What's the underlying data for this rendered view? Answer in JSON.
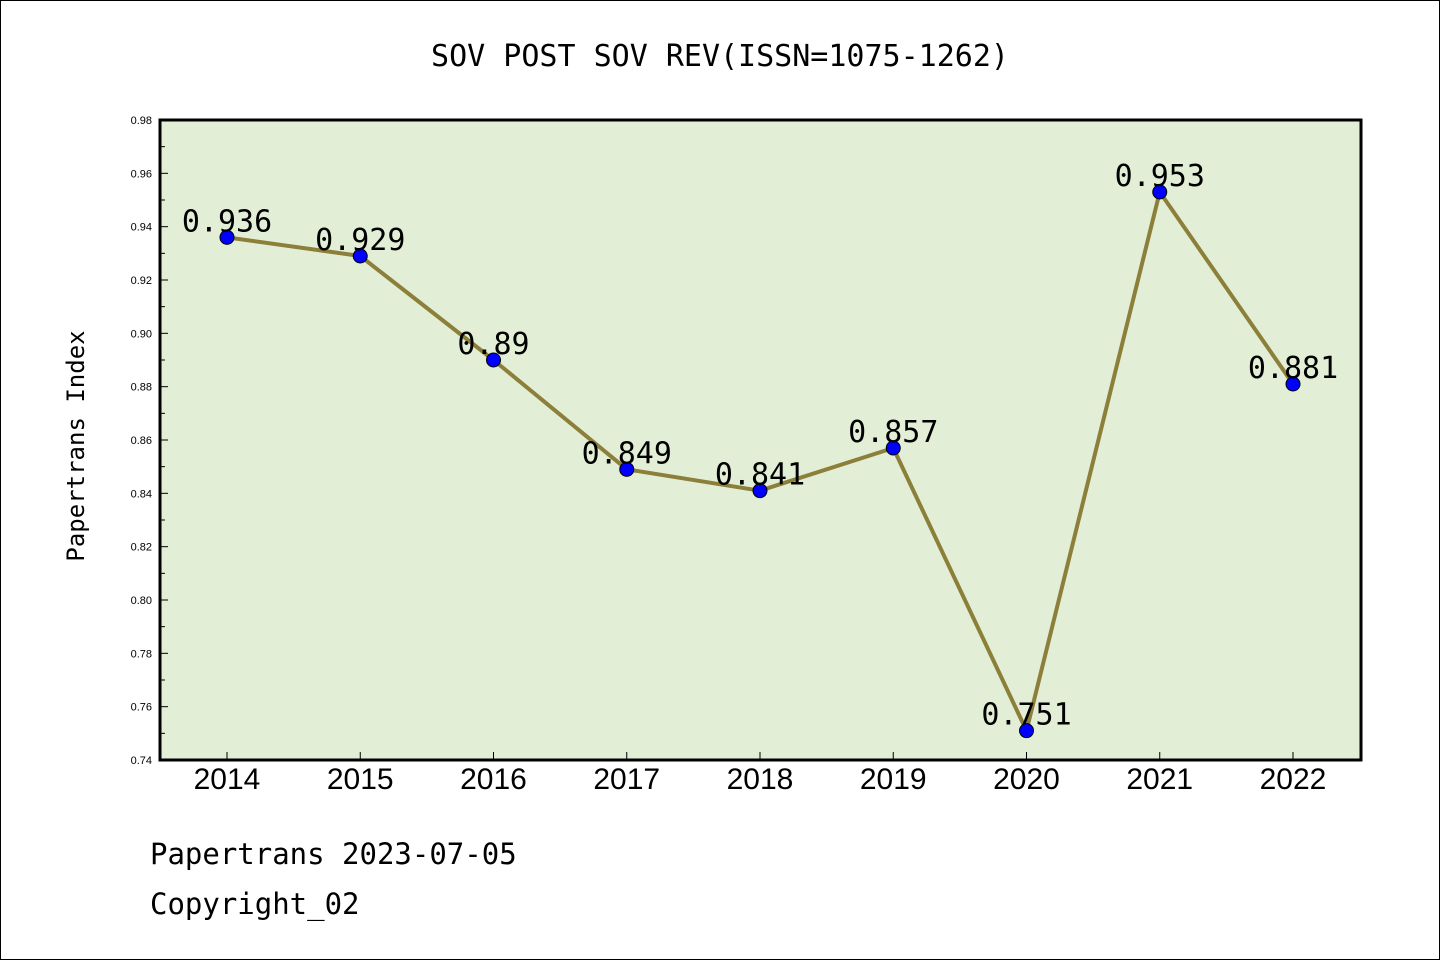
{
  "chart_data": {
    "type": "line",
    "title": "SOV POST SOV REV(ISSN=1075-1262)",
    "ylabel": "Papertrans Index",
    "xlabel": "",
    "categories": [
      "2014",
      "2015",
      "2016",
      "2017",
      "2018",
      "2019",
      "2020",
      "2021",
      "2022"
    ],
    "series": [
      {
        "values": [
          0.936,
          0.929,
          0.89,
          0.849,
          0.841,
          0.857,
          0.751,
          0.953,
          0.881
        ],
        "data_labels": [
          "0.936",
          "0.929",
          "0.89",
          "0.849",
          "0.841",
          "0.857",
          "0.751",
          "0.953",
          "0.881"
        ]
      }
    ],
    "ylim": [
      0.74,
      0.98
    ],
    "yticks": [
      0.74,
      0.76,
      0.78,
      0.8,
      0.82,
      0.84,
      0.86,
      0.88,
      0.9,
      0.92,
      0.94,
      0.96,
      0.98
    ],
    "ytick_labels": [
      "0.74",
      "0.76",
      "0.78",
      "0.80",
      "0.82",
      "0.84",
      "0.86",
      "0.88",
      "0.90",
      "0.92",
      "0.94",
      "0.96",
      "0.98"
    ],
    "grid": false,
    "legend": "none",
    "colors": {
      "plot_background": "#e2efd6",
      "line": "#8c7f3a",
      "marker": "#0000ff"
    }
  },
  "footer": {
    "line1": "Papertrans 2023-07-05",
    "line2": "Copyright_02"
  }
}
